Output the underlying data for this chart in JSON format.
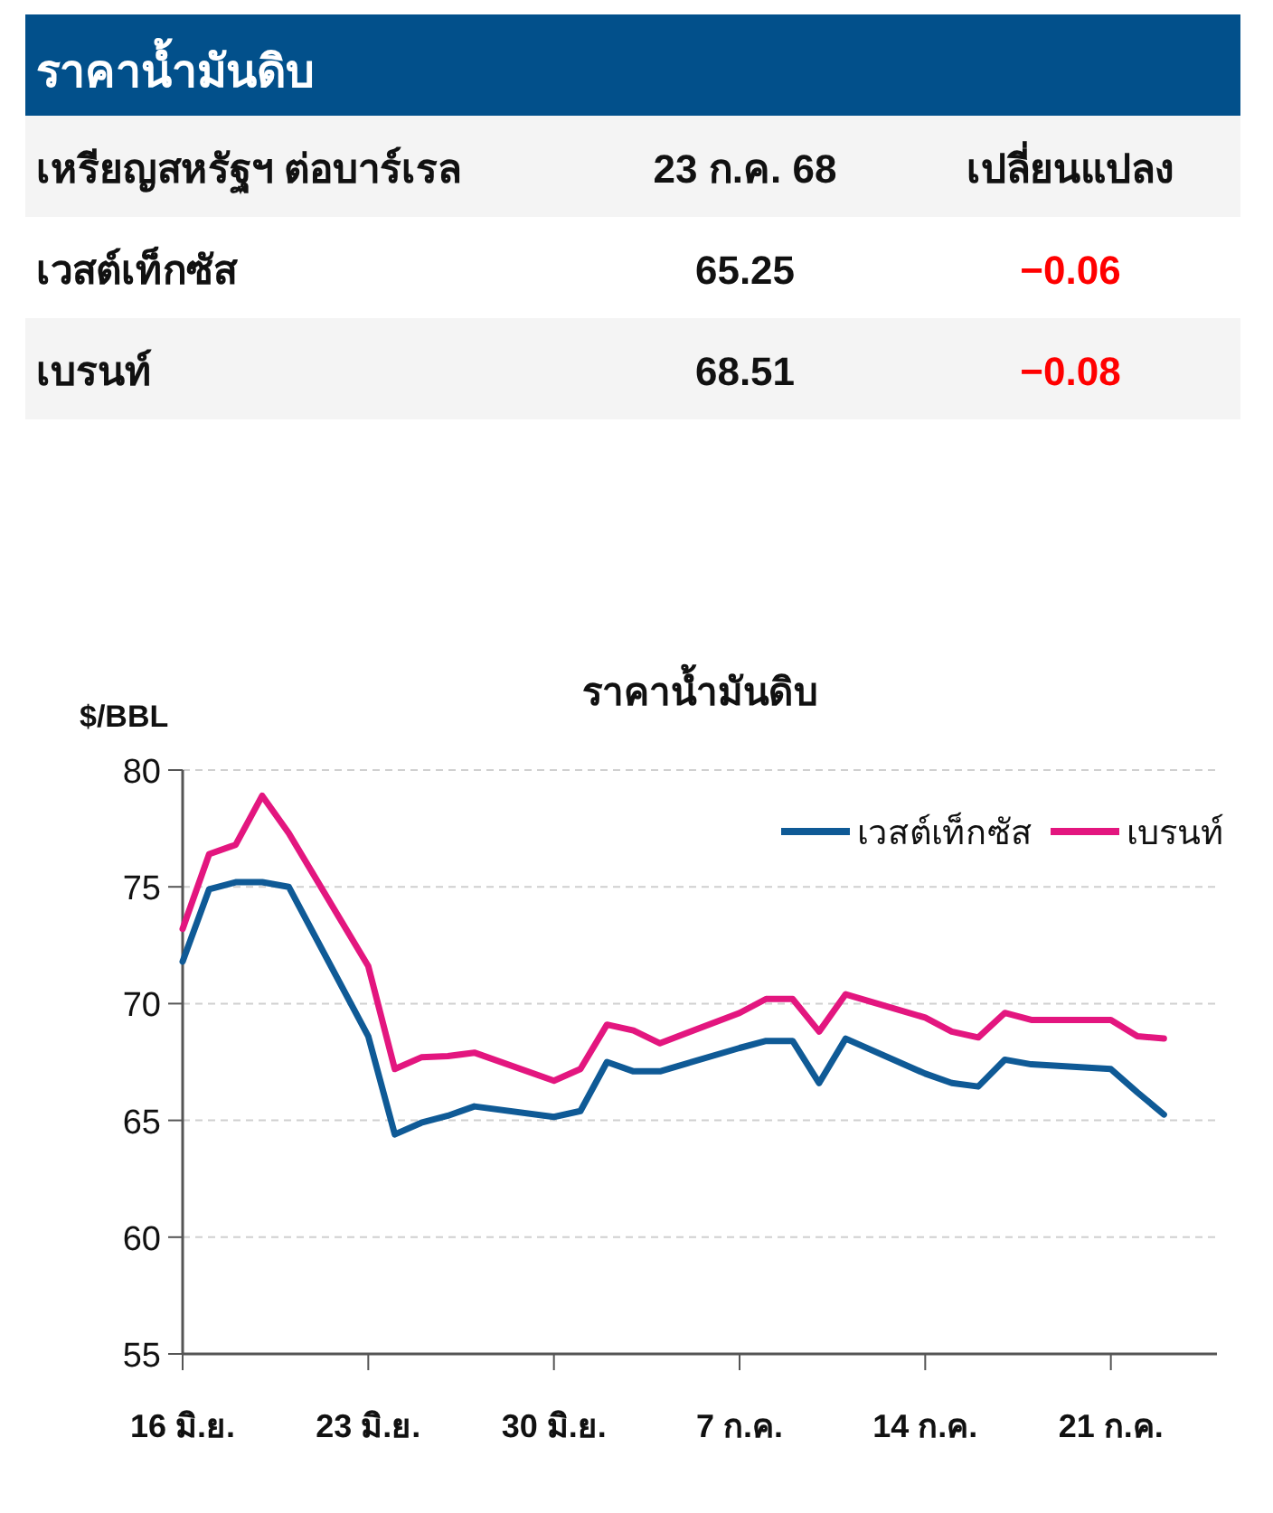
{
  "chart_data": [
    {
      "type": "other",
      "title": "ราคาน้ำมันดิบ",
      "annotations": [
        "เหรียญสหรัฐฯ ต่อบาร์เรล",
        "23 ก.ค. 68",
        "เปลี่ยนแปลง",
        "เวสต์เท็กซัส",
        "65.25",
        "−0.06",
        "เบรนท์",
        "68.51",
        "−0.08"
      ]
    },
    {
      "type": "line",
      "title": "ราคาน้ำมันดิบ",
      "ylabel": "$/BBL",
      "x": [
        "--06-16",
        "--06-17",
        "--06-18",
        "--06-19",
        "--06-20",
        "--06-23",
        "--06-24",
        "--06-25",
        "--06-26",
        "--06-27",
        "--06-30",
        "--07-01",
        "--07-02",
        "--07-03",
        "--07-04",
        "--07-07",
        "--07-08",
        "--07-09",
        "--07-10",
        "--07-11",
        "--07-14",
        "--07-15",
        "--07-16",
        "--07-17",
        "--07-18",
        "--07-21",
        "--07-22",
        "--07-23"
      ],
      "series": [
        {
          "name": "เวสต์เท็กซัส",
          "color": "#0f5a96",
          "values": [
            71.8,
            74.9,
            75.2,
            75.2,
            75.0,
            68.6,
            64.4,
            64.9,
            65.2,
            65.6,
            65.15,
            65.4,
            67.5,
            67.1,
            67.1,
            68.1,
            68.4,
            68.4,
            66.6,
            68.5,
            67.0,
            66.6,
            66.45,
            67.6,
            67.4,
            67.2,
            66.2,
            65.25
          ]
        },
        {
          "name": "เบรนท์",
          "color": "#e3167f",
          "values": [
            73.2,
            76.4,
            76.8,
            78.9,
            77.3,
            71.6,
            67.2,
            67.7,
            67.75,
            67.9,
            66.7,
            67.2,
            69.1,
            68.85,
            68.3,
            69.6,
            70.2,
            70.2,
            68.8,
            70.4,
            69.4,
            68.8,
            68.55,
            69.6,
            69.3,
            69.3,
            68.6,
            68.51
          ]
        }
      ],
      "xlim": [
        "--06-16",
        "--07-25"
      ],
      "xticks": [
        {
          "value": "--06-16",
          "label": "16 มิ.ย."
        },
        {
          "value": "--06-23",
          "label": "23 มิ.ย."
        },
        {
          "value": "--06-30",
          "label": "30 มิ.ย."
        },
        {
          "value": "--07-07",
          "label": "7 ก.ค."
        },
        {
          "value": "--07-14",
          "label": "14 ก.ค."
        },
        {
          "value": "--07-21",
          "label": "21 ก.ค."
        }
      ],
      "ylim": [
        55,
        80
      ],
      "yticks": [
        55,
        60,
        65,
        70,
        75,
        80
      ],
      "grid": "y",
      "legend": "top right",
      "line_style": "solid",
      "marker": "none"
    }
  ]
}
